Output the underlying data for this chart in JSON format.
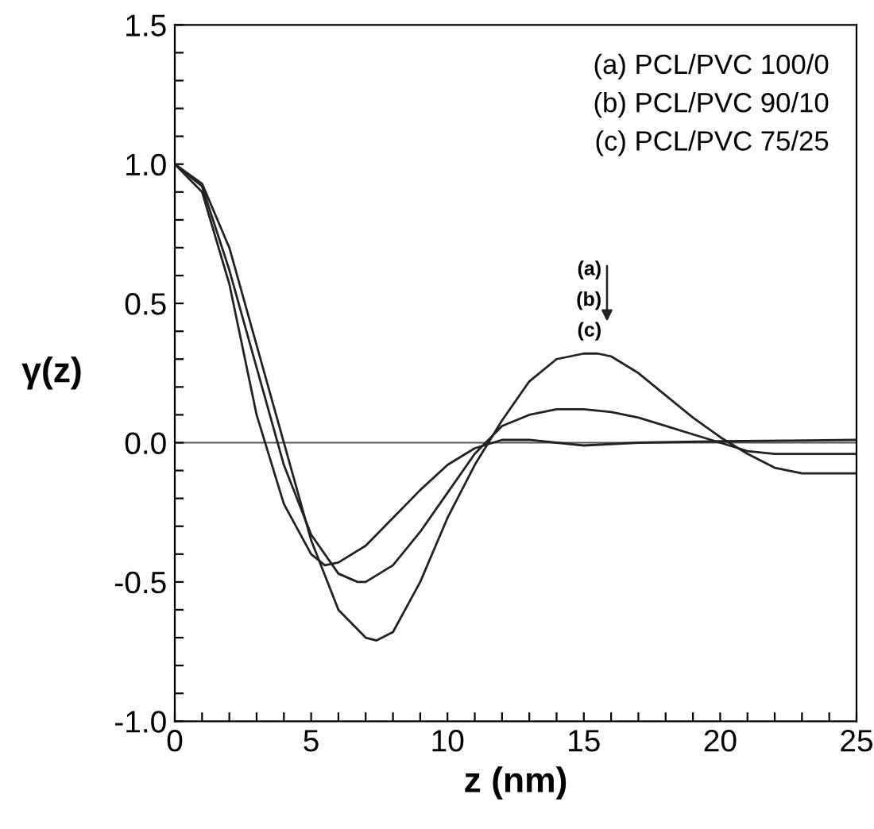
{
  "chart_data": {
    "type": "line",
    "xlabel": "z (nm)",
    "ylabel": "γ(z)",
    "xlim": [
      0,
      25
    ],
    "ylim": [
      -1.0,
      1.5
    ],
    "xticks": [
      0,
      {
        "value": 1,
        "label": null
      },
      {
        "value": 2,
        "label": null
      },
      {
        "value": 3,
        "label": null
      },
      {
        "value": 4,
        "label": null
      },
      5,
      {
        "value": 6,
        "label": null
      },
      {
        "value": 7,
        "label": null
      },
      {
        "value": 8,
        "label": null
      },
      {
        "value": 9,
        "label": null
      },
      10,
      {
        "value": 11,
        "label": null
      },
      {
        "value": 12,
        "label": null
      },
      {
        "value": 13,
        "label": null
      },
      {
        "value": 14,
        "label": null
      },
      15,
      {
        "value": 16,
        "label": null
      },
      {
        "value": 17,
        "label": null
      },
      {
        "value": 18,
        "label": null
      },
      {
        "value": 19,
        "label": null
      },
      20,
      {
        "value": 21,
        "label": null
      },
      {
        "value": 22,
        "label": null
      },
      {
        "value": 23,
        "label": null
      },
      {
        "value": 24,
        "label": null
      },
      25
    ],
    "yticks": [
      {
        "value": -1.0,
        "label": "-1.0"
      },
      {
        "value": -0.9,
        "label": null
      },
      {
        "value": -0.8,
        "label": null
      },
      {
        "value": -0.7,
        "label": null
      },
      {
        "value": -0.6,
        "label": null
      },
      {
        "value": -0.5,
        "label": "-0.5"
      },
      {
        "value": -0.4,
        "label": null
      },
      {
        "value": -0.3,
        "label": null
      },
      {
        "value": -0.2,
        "label": null
      },
      {
        "value": -0.1,
        "label": null
      },
      {
        "value": 0,
        "label": "0.0"
      },
      {
        "value": 0.1,
        "label": null
      },
      {
        "value": 0.2,
        "label": null
      },
      {
        "value": 0.3,
        "label": null
      },
      {
        "value": 0.4,
        "label": null
      },
      {
        "value": 0.5,
        "label": "0.5"
      },
      {
        "value": 0.6,
        "label": null
      },
      {
        "value": 0.7,
        "label": null
      },
      {
        "value": 0.8,
        "label": null
      },
      {
        "value": 0.9,
        "label": null
      },
      {
        "value": 1.0,
        "label": "1.0"
      },
      {
        "value": 1.1,
        "label": null
      },
      {
        "value": 1.2,
        "label": null
      },
      {
        "value": 1.3,
        "label": null
      },
      {
        "value": 1.4,
        "label": null
      },
      {
        "value": 1.5,
        "label": "1.5"
      }
    ],
    "grid": false,
    "legend": false,
    "marker": "none",
    "line_style": "solid",
    "ref_lines": [
      {
        "axis": "y",
        "value": 0,
        "label": null,
        "color": "#555555"
      }
    ],
    "annotations": [
      "(a) PCL/PVC 100/0",
      "(b) PCL/PVC 90/10",
      "(c) PCL/PVC 75/25",
      "(a)",
      "(b)",
      "(c)"
    ],
    "series": [
      {
        "color": "#222222",
        "x": [
          0,
          1,
          2,
          3,
          4,
          5,
          6,
          7,
          7.4,
          8,
          9,
          10,
          11,
          12,
          13,
          14,
          15,
          15.5,
          16,
          17,
          18,
          19,
          20,
          21,
          22,
          23,
          24,
          25
        ],
        "values": [
          1.0,
          0.93,
          0.7,
          0.35,
          0.0,
          -0.35,
          -0.6,
          -0.7,
          -0.71,
          -0.68,
          -0.5,
          -0.27,
          -0.08,
          0.08,
          0.22,
          0.3,
          0.32,
          0.32,
          0.31,
          0.25,
          0.17,
          0.09,
          0.02,
          -0.04,
          -0.09,
          -0.11,
          -0.11,
          -0.11
        ]
      },
      {
        "color": "#222222",
        "x": [
          0,
          1,
          2,
          3,
          4,
          5,
          6,
          6.7,
          7,
          8,
          9,
          10,
          11,
          12,
          13,
          14,
          15,
          16,
          17,
          18,
          19,
          20,
          21,
          22,
          25
        ],
        "values": [
          1.0,
          0.92,
          0.62,
          0.27,
          -0.08,
          -0.33,
          -0.47,
          -0.5,
          -0.5,
          -0.44,
          -0.32,
          -0.18,
          -0.04,
          0.06,
          0.1,
          0.12,
          0.12,
          0.11,
          0.09,
          0.06,
          0.03,
          0.0,
          -0.03,
          -0.04,
          -0.04
        ]
      },
      {
        "color": "#222222",
        "x": [
          0,
          1,
          2,
          3,
          4,
          5,
          5.5,
          6,
          7,
          8,
          9,
          10,
          11,
          12,
          13,
          14,
          15,
          16,
          17,
          20,
          25
        ],
        "values": [
          1.0,
          0.9,
          0.57,
          0.1,
          -0.22,
          -0.4,
          -0.44,
          -0.43,
          -0.37,
          -0.27,
          -0.17,
          -0.08,
          -0.02,
          0.01,
          0.01,
          0.0,
          -0.01,
          -0.005,
          0.0,
          0.005,
          0.01
        ]
      }
    ]
  }
}
